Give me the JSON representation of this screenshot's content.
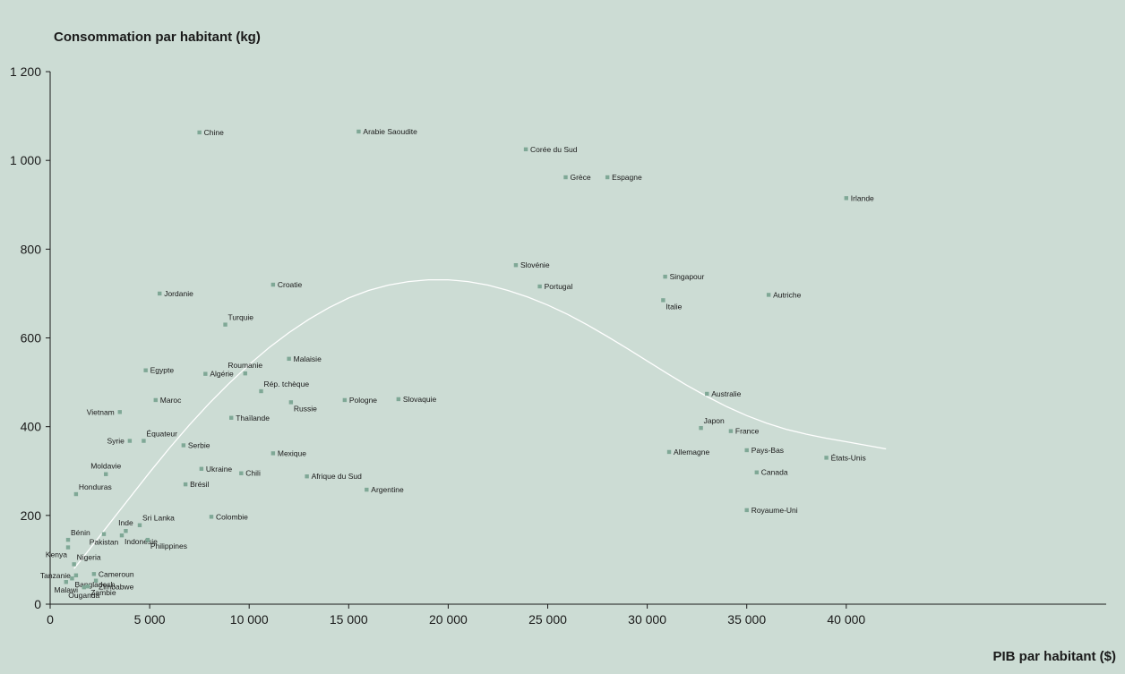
{
  "chart_data": {
    "type": "scatter",
    "ylabel": "Consommation par habitant (kg)",
    "xlabel": "PIB par habitant ($)",
    "xlim": [
      0,
      42500
    ],
    "ylim": [
      0,
      1200
    ],
    "x_ticks": [
      0,
      5000,
      10000,
      15000,
      20000,
      25000,
      30000,
      35000,
      40000
    ],
    "x_tick_labels": [
      "0",
      "5 000",
      "10 000",
      "15 000",
      "20 000",
      "25 000",
      "30 000",
      "35 000",
      "40 000"
    ],
    "y_ticks": [
      0,
      200,
      400,
      600,
      800,
      1000,
      1200
    ],
    "y_tick_labels": [
      "0",
      "200",
      "400",
      "600",
      "800",
      "1 000",
      "1 200"
    ],
    "grid": false,
    "colors": {
      "background": "#ccdcd4",
      "marker": "#7fa896",
      "trend": "#ffffff",
      "axis": "#1a1a1a"
    },
    "points": [
      {
        "label": "Chine",
        "x": 7500,
        "y": 1063,
        "pos": "right"
      },
      {
        "label": "Arabie Saoudite",
        "x": 15500,
        "y": 1065,
        "pos": "right"
      },
      {
        "label": "Corée du Sud",
        "x": 23900,
        "y": 1025,
        "pos": "right"
      },
      {
        "label": "Grèce",
        "x": 25900,
        "y": 962,
        "pos": "right"
      },
      {
        "label": "Espagne",
        "x": 28000,
        "y": 962,
        "pos": "right"
      },
      {
        "label": "Irlande",
        "x": 40000,
        "y": 915,
        "pos": "right"
      },
      {
        "label": "Slovénie",
        "x": 23400,
        "y": 764,
        "pos": "right"
      },
      {
        "label": "Portugal",
        "x": 24600,
        "y": 716,
        "pos": "right"
      },
      {
        "label": "Singapour",
        "x": 30900,
        "y": 738,
        "pos": "right"
      },
      {
        "label": "Italie",
        "x": 30800,
        "y": 685,
        "pos": "right-below"
      },
      {
        "label": "Autriche",
        "x": 36100,
        "y": 697,
        "pos": "right"
      },
      {
        "label": "Jordanie",
        "x": 5500,
        "y": 700,
        "pos": "right"
      },
      {
        "label": "Croatie",
        "x": 11200,
        "y": 720,
        "pos": "right"
      },
      {
        "label": "Turquie",
        "x": 8800,
        "y": 630,
        "pos": "right-above"
      },
      {
        "label": "Malaisie",
        "x": 12000,
        "y": 553,
        "pos": "right"
      },
      {
        "label": "Roumanie",
        "x": 9800,
        "y": 520,
        "pos": "above"
      },
      {
        "label": "Rép. tchèque",
        "x": 10600,
        "y": 480,
        "pos": "right-above"
      },
      {
        "label": "Egypte",
        "x": 4800,
        "y": 527,
        "pos": "right"
      },
      {
        "label": "Algérie",
        "x": 7800,
        "y": 519,
        "pos": "right"
      },
      {
        "label": "Maroc",
        "x": 5300,
        "y": 460,
        "pos": "right"
      },
      {
        "label": "Russie",
        "x": 12100,
        "y": 455,
        "pos": "right-below"
      },
      {
        "label": "Pologne",
        "x": 14800,
        "y": 460,
        "pos": "right"
      },
      {
        "label": "Slovaquie",
        "x": 17500,
        "y": 462,
        "pos": "right"
      },
      {
        "label": "Australie",
        "x": 33000,
        "y": 474,
        "pos": "right"
      },
      {
        "label": "Vietnam",
        "x": 3500,
        "y": 433,
        "pos": "left"
      },
      {
        "label": "Thaïlande",
        "x": 9100,
        "y": 420,
        "pos": "right"
      },
      {
        "label": "Japon",
        "x": 32700,
        "y": 397,
        "pos": "right-above"
      },
      {
        "label": "France",
        "x": 34200,
        "y": 390,
        "pos": "right"
      },
      {
        "label": "Syrie",
        "x": 4000,
        "y": 368,
        "pos": "left"
      },
      {
        "label": "Équateur",
        "x": 4700,
        "y": 368,
        "pos": "right-above"
      },
      {
        "label": "Serbie",
        "x": 6700,
        "y": 358,
        "pos": "right"
      },
      {
        "label": "Allemagne",
        "x": 31100,
        "y": 343,
        "pos": "right"
      },
      {
        "label": "Pays-Bas",
        "x": 35000,
        "y": 347,
        "pos": "right"
      },
      {
        "label": "États-Unis",
        "x": 39000,
        "y": 330,
        "pos": "right"
      },
      {
        "label": "Mexique",
        "x": 11200,
        "y": 340,
        "pos": "right"
      },
      {
        "label": "Ukraine",
        "x": 7600,
        "y": 305,
        "pos": "right"
      },
      {
        "label": "Chili",
        "x": 9600,
        "y": 295,
        "pos": "right"
      },
      {
        "label": "Canada",
        "x": 35500,
        "y": 297,
        "pos": "right"
      },
      {
        "label": "Moldavie",
        "x": 2800,
        "y": 293,
        "pos": "above"
      },
      {
        "label": "Afrique du Sud",
        "x": 12900,
        "y": 288,
        "pos": "right"
      },
      {
        "label": "Brésil",
        "x": 6800,
        "y": 270,
        "pos": "right"
      },
      {
        "label": "Argentine",
        "x": 15900,
        "y": 258,
        "pos": "right"
      },
      {
        "label": "Honduras",
        "x": 1300,
        "y": 248,
        "pos": "right-above"
      },
      {
        "label": "Royaume-Uni",
        "x": 35000,
        "y": 212,
        "pos": "right"
      },
      {
        "label": "Colombie",
        "x": 8100,
        "y": 197,
        "pos": "right"
      },
      {
        "label": "Sri Lanka",
        "x": 4500,
        "y": 178,
        "pos": "right-above"
      },
      {
        "label": "Inde",
        "x": 3800,
        "y": 165,
        "pos": "above"
      },
      {
        "label": "Bénin",
        "x": 900,
        "y": 145,
        "pos": "right-above"
      },
      {
        "label": "Pakistan",
        "x": 2700,
        "y": 158,
        "pos": "below"
      },
      {
        "label": "Indonésie",
        "x": 3600,
        "y": 155,
        "pos": "right-below"
      },
      {
        "label": "Philippines",
        "x": 4900,
        "y": 145,
        "pos": "right-below"
      },
      {
        "label": "Kenya",
        "x": 900,
        "y": 128,
        "pos": "left-below"
      },
      {
        "label": "Nigeria",
        "x": 1200,
        "y": 90,
        "pos": "right-above"
      },
      {
        "label": "Tanzanie",
        "x": 1300,
        "y": 65,
        "pos": "left"
      },
      {
        "label": "Cameroun",
        "x": 2200,
        "y": 68,
        "pos": "right"
      },
      {
        "label": "Bangladesh",
        "x": 1100,
        "y": 58,
        "pos": "right-below"
      },
      {
        "label": "Zimbabwe",
        "x": 2300,
        "y": 53,
        "pos": "right-below"
      },
      {
        "label": "Malawi",
        "x": 800,
        "y": 50,
        "pos": "below"
      },
      {
        "label": "Zambie",
        "x": 1900,
        "y": 40,
        "pos": "right-below"
      },
      {
        "label": "Ouganda",
        "x": 1700,
        "y": 38,
        "pos": "below"
      }
    ],
    "trend_line": {
      "type": "curve",
      "x": [
        1200,
        2000,
        3000,
        4000,
        5000,
        6000,
        7000,
        8000,
        9000,
        10000,
        11000,
        12000,
        13000,
        14000,
        15000,
        16000,
        17000,
        18000,
        19000,
        20000,
        21000,
        22000,
        23000,
        24000,
        25000,
        26000,
        27000,
        28000,
        29000,
        30000,
        31000,
        32000,
        33000,
        34000,
        35000,
        36000,
        37000,
        38000,
        39000,
        40000,
        41000,
        42000
      ],
      "y": [
        80,
        125,
        183,
        240,
        297,
        352,
        404,
        453,
        498,
        540,
        578,
        612,
        642,
        668,
        690,
        707,
        719,
        727,
        731,
        731,
        727,
        719,
        707,
        692,
        674,
        653,
        629,
        603,
        576,
        548,
        520,
        493,
        468,
        445,
        425,
        408,
        394,
        383,
        374,
        366,
        358,
        350
      ]
    }
  }
}
